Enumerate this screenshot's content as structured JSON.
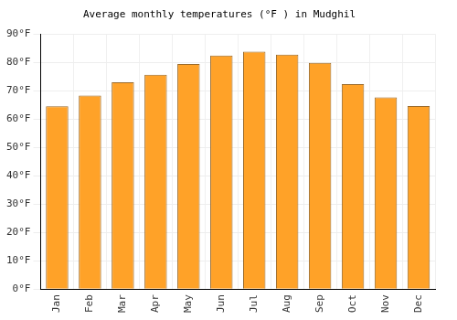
{
  "chart_data": {
    "type": "bar",
    "title": "Average monthly temperatures (°F ) in Mudghil",
    "categories": [
      "Jan",
      "Feb",
      "Mar",
      "Apr",
      "May",
      "Jun",
      "Jul",
      "Aug",
      "Sep",
      "Oct",
      "Nov",
      "Dec"
    ],
    "values": [
      64.5,
      68.3,
      73.0,
      75.6,
      79.4,
      82.4,
      83.8,
      82.7,
      79.8,
      72.3,
      67.6,
      64.6
    ],
    "color": "#ffa228",
    "ylim": [
      0,
      90
    ],
    "yticks": [
      {
        "value": 0,
        "label": "0°F"
      },
      {
        "value": 10,
        "label": "10°F"
      },
      {
        "value": 20,
        "label": "20°F"
      },
      {
        "value": 30,
        "label": "30°F"
      },
      {
        "value": 40,
        "label": "40°F"
      },
      {
        "value": 50,
        "label": "50°F"
      },
      {
        "value": 60,
        "label": "60°F"
      },
      {
        "value": 70,
        "label": "70°F"
      },
      {
        "value": 80,
        "label": "80°F"
      },
      {
        "value": 90,
        "label": "90°F"
      }
    ],
    "grid": true
  }
}
